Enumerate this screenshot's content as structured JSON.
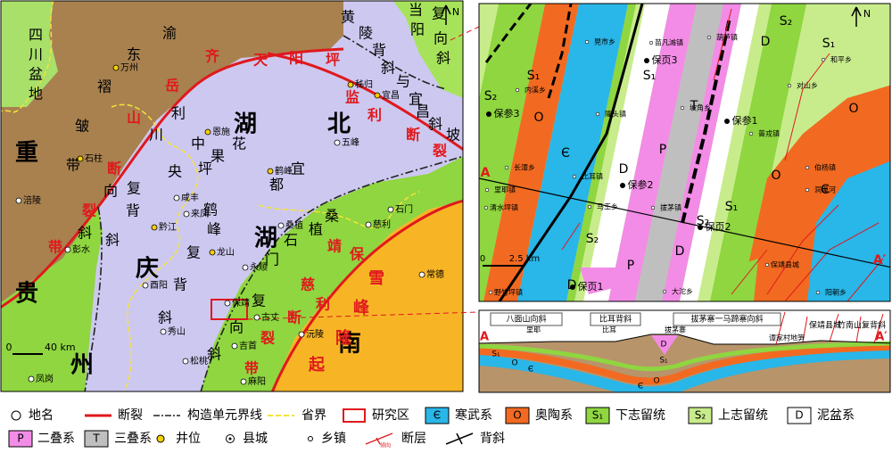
{
  "left_map": {
    "labels": [
      "四",
      "川",
      "盆",
      "地",
      "渝",
      "东",
      "褶",
      "皱",
      "带",
      "重",
      "庆",
      "贵",
      "州",
      "湖",
      "北",
      "湖",
      "南",
      "齐",
      "岳",
      "山",
      "断",
      "裂",
      "带",
      "天",
      "阳",
      "坪",
      "监",
      "利",
      "断",
      "裂",
      "黄",
      "陵",
      "背",
      "斜",
      "与",
      "宜",
      "昌",
      "斜",
      "坡",
      "当",
      "阳",
      "复",
      "向",
      "斜",
      "利",
      "川",
      "中",
      "花",
      "央",
      "果",
      "坪",
      "复",
      "向",
      "背",
      "斜",
      "宜",
      "都",
      "鹤",
      "峰",
      "复",
      "背",
      "斜",
      "桑",
      "植",
      "石",
      "门",
      "复",
      "向",
      "斜",
      "慈",
      "利",
      "靖",
      "保",
      "断",
      "裂",
      "带",
      "雪",
      "峰",
      "隆",
      "起",
      "斜"
    ],
    "towns": [
      "万州",
      "秭归",
      "宜昌",
      "恩施",
      "五峰",
      "石柱",
      "鹤峰",
      "咸丰",
      "来凤",
      "涪陵",
      "彭水",
      "黔江",
      "龙山",
      "桑植",
      "慈利",
      "石门",
      "永顺",
      "常德",
      "酉阳",
      "保靖",
      "古丈",
      "沅陵",
      "秀山",
      "吉首",
      "松桃",
      "麻阳",
      "凤岗"
    ],
    "scale_start": "0",
    "scale_end": "40 km",
    "north": "N"
  },
  "right_map": {
    "strata_labels": [
      "S₂",
      "S₁",
      "O",
      "Є",
      "D",
      "T",
      "P",
      "S₁",
      "D",
      "S₂",
      "S₁",
      "O",
      "O",
      "Є",
      "S₁",
      "S₂",
      "D",
      "P",
      "D",
      "S₂"
    ],
    "towns": [
      "晃市乡",
      "苗凡滩镇",
      "葫芦镇",
      "内溪乡",
      "隆头镇",
      "坡角乡",
      "普戎镇",
      "对山乡",
      "和平乡",
      "伯杨镇",
      "洞溪河",
      "长潭乡",
      "里耶镇",
      "比耳镇",
      "清水坪镇",
      "马王乡",
      "拔茅镇",
      "保靖县城",
      "阳朝乡",
      "大沱乡",
      "野竹坪镇"
    ],
    "wells": [
      "保参3",
      "保页3",
      "保参1",
      "保参2",
      "保页2",
      "保页1"
    ],
    "section_ends": [
      "A",
      "A′"
    ],
    "scale_start": "0",
    "scale_end": "2.5 km",
    "north": "N"
  },
  "cross_section": {
    "structures": [
      "八面山向斜",
      "比耳背斜",
      "拔茅寨一马蹄寨向斜",
      "保靖县城",
      "竹南山复背斜"
    ],
    "places": [
      "里耶",
      "比耳",
      "拔茅寨",
      "谭家村地笋"
    ],
    "strata": [
      "S₁",
      "O",
      "Є",
      "D",
      "S₁",
      "O",
      "Є"
    ],
    "ends": [
      "A",
      "A′"
    ]
  },
  "legend": [
    {
      "label": "地名"
    },
    {
      "label": "断裂"
    },
    {
      "label": "构造单元界线"
    },
    {
      "label": "省界"
    },
    {
      "label": "研究区"
    },
    {
      "symbol": "Є",
      "label": "寒武系"
    },
    {
      "symbol": "O",
      "label": "奥陶系"
    },
    {
      "symbol": "S₁",
      "label": "下志留统"
    },
    {
      "symbol": "S₂",
      "label": "上志留统"
    },
    {
      "symbol": "D",
      "label": "泥盆系"
    },
    {
      "symbol": "P",
      "label": "二叠系"
    },
    {
      "symbol": "T",
      "label": "三叠系"
    },
    {
      "label": "井位"
    },
    {
      "label": "县城"
    },
    {
      "label": "乡镇"
    },
    {
      "label": "断层",
      "note": "倾向"
    },
    {
      "label": "背斜"
    }
  ]
}
